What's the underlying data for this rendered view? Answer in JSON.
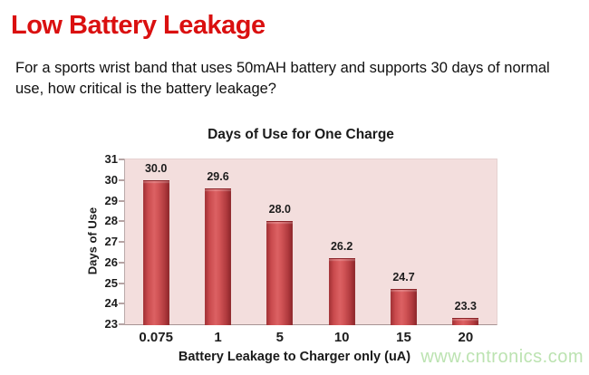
{
  "slide": {
    "title": "Low Battery Leakage",
    "body": "For a sports wrist band that uses 50mAH battery and supports 30 days of normal use, how critical is the battery leakage?",
    "watermark": "www.cntronics.com"
  },
  "colors": {
    "title_red": "#da1010",
    "bar_red_center": "#dc6163",
    "bar_red_edge": "#8c2529",
    "plot_background_pink": "#f3dedd",
    "watermark_green": "#bce3b1"
  },
  "chart_data": {
    "type": "bar",
    "title": "Days of Use for One Charge",
    "categories": [
      "0.075",
      "1",
      "5",
      "10",
      "15",
      "20"
    ],
    "values": [
      30.0,
      29.6,
      28.0,
      26.2,
      24.7,
      23.3
    ],
    "value_labels": [
      "30.0",
      "29.6",
      "28.0",
      "26.2",
      "24.7",
      "23.3"
    ],
    "xlabel": "Battery Leakage to Charger only (uA)",
    "ylabel": "Days of Use",
    "ylim": [
      23,
      31
    ],
    "yticks": [
      23,
      24,
      25,
      26,
      27,
      28,
      29,
      30,
      31
    ],
    "grid": false,
    "legend": false
  }
}
